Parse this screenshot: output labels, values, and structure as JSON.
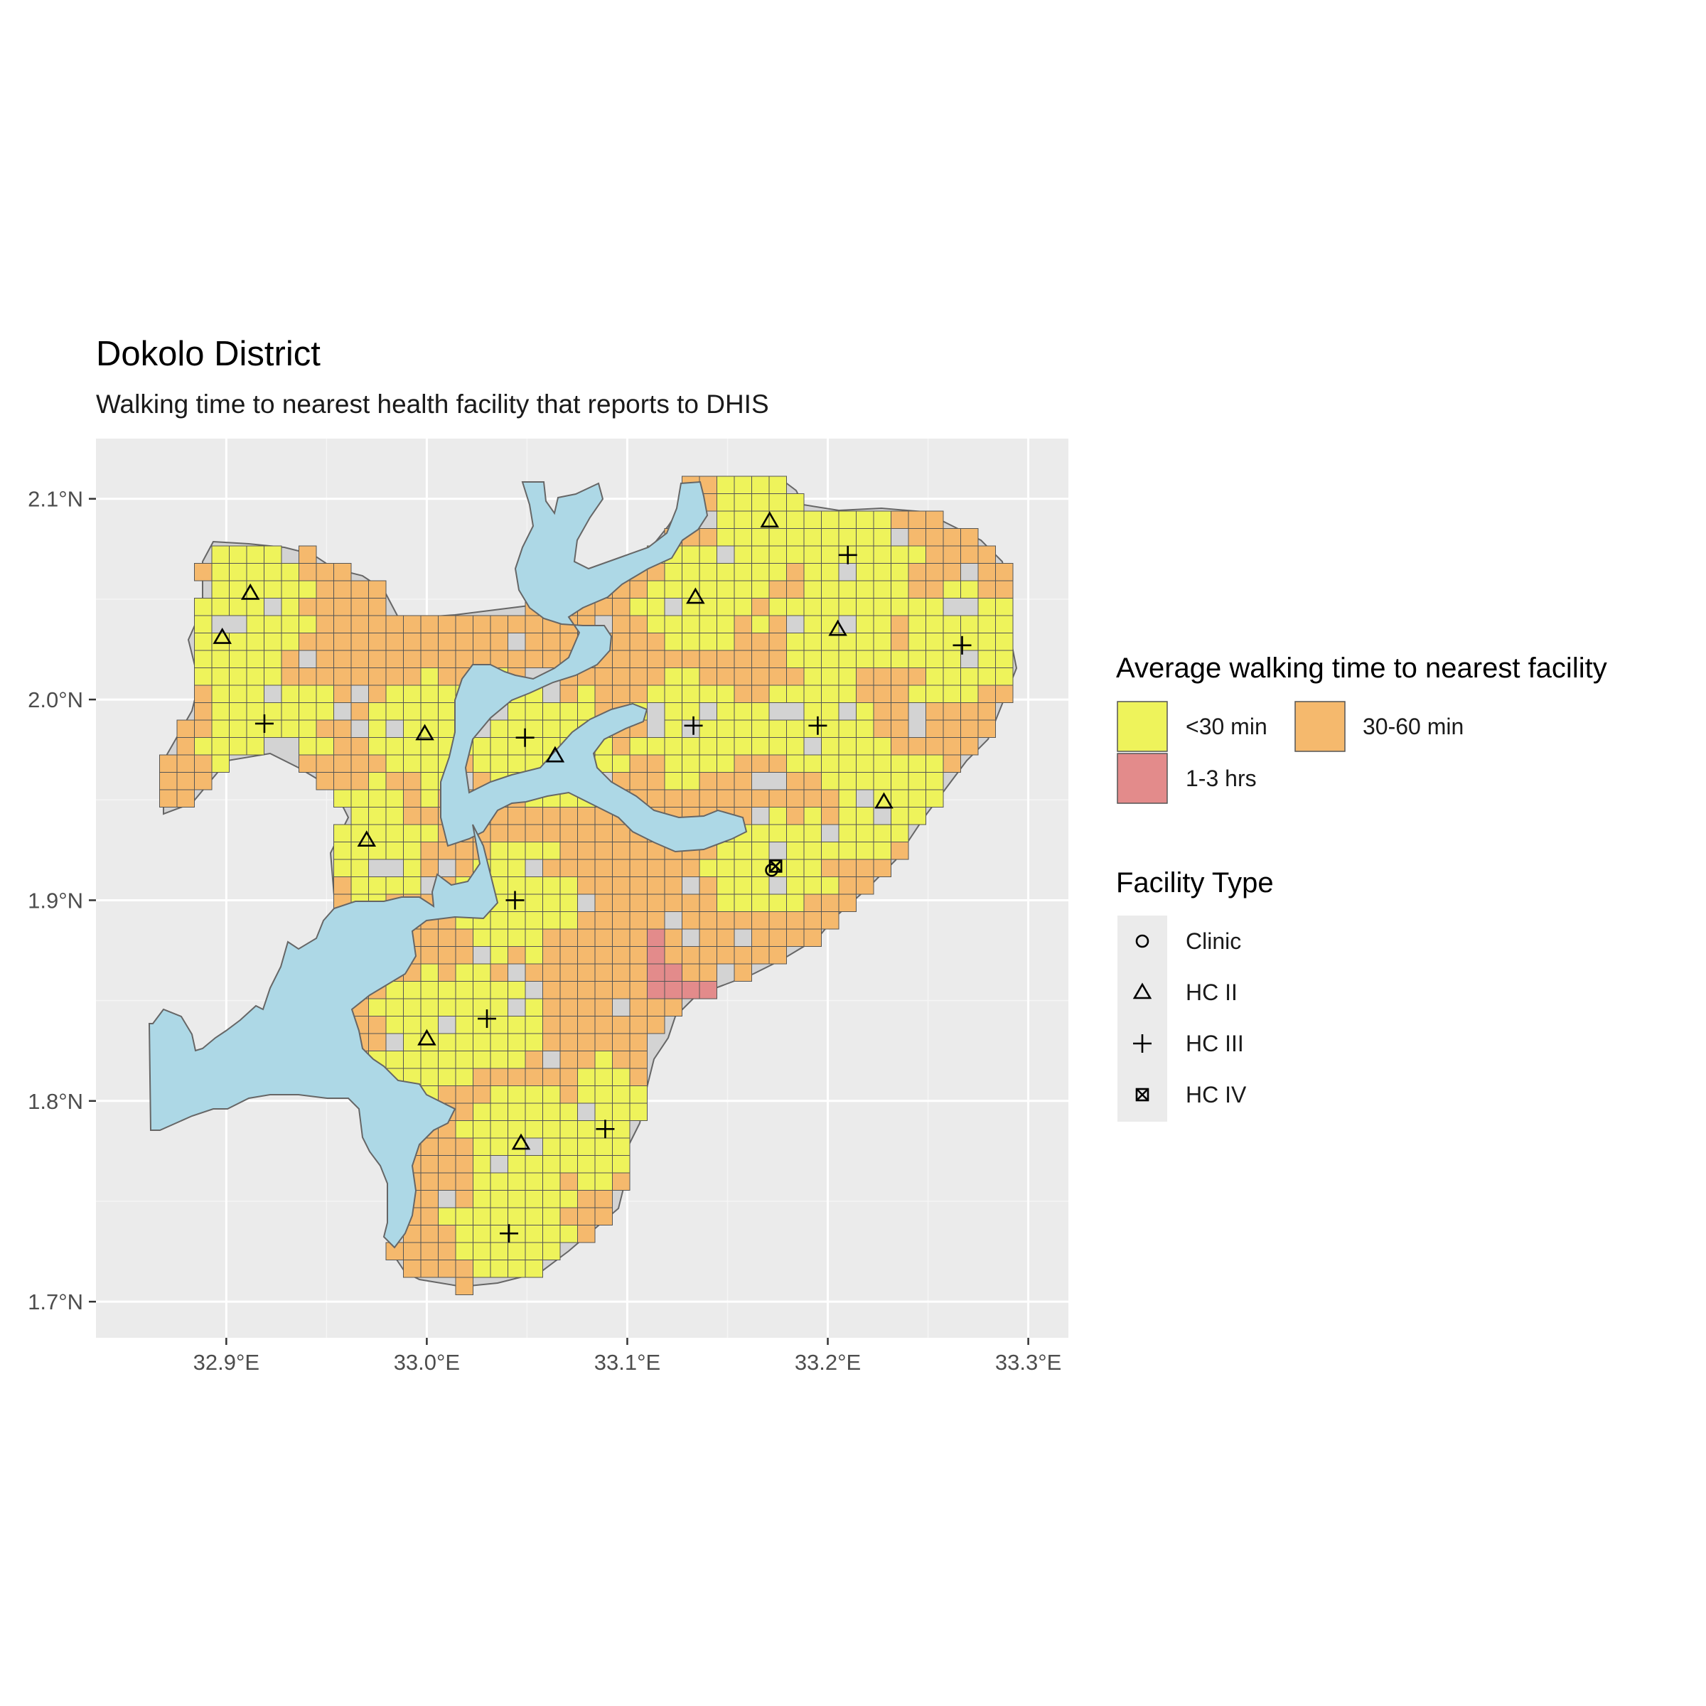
{
  "title": "Dokolo District",
  "subtitle": "Walking time to nearest health facility that reports to DHIS",
  "map": {
    "x_ticks": [
      {
        "value": 32.9,
        "label": "32.9°E"
      },
      {
        "value": 33.0,
        "label": "33.0°E"
      },
      {
        "value": 33.1,
        "label": "33.1°E"
      },
      {
        "value": 33.2,
        "label": "33.2°E"
      },
      {
        "value": 33.3,
        "label": "33.3°E"
      }
    ],
    "y_ticks": [
      {
        "value": 1.7,
        "label": "1.7°N"
      },
      {
        "value": 1.8,
        "label": "1.8°N"
      },
      {
        "value": 1.9,
        "label": "1.9°N"
      },
      {
        "value": 2.0,
        "label": "2.0°N"
      },
      {
        "value": 2.1,
        "label": "2.1°N"
      }
    ],
    "xlim": [
      32.835,
      33.32
    ],
    "ylim": [
      1.682,
      2.13
    ],
    "colors": {
      "panel": "#ebebeb",
      "district": "#d3d3d3",
      "water": "#add8e6",
      "lt30": "#eef35b",
      "30to60": "#f5b96d",
      "1to3": "#e38b8b",
      "cell_border": "#555555"
    },
    "facilities": [
      {
        "type": "HC II",
        "lon": 32.912,
        "lat": 2.053
      },
      {
        "type": "HC II",
        "lon": 32.898,
        "lat": 2.031
      },
      {
        "type": "HC III",
        "lon": 32.919,
        "lat": 1.988
      },
      {
        "type": "HC II",
        "lon": 32.999,
        "lat": 1.983
      },
      {
        "type": "HC II",
        "lon": 32.97,
        "lat": 1.93
      },
      {
        "type": "HC III",
        "lon": 33.049,
        "lat": 1.981
      },
      {
        "type": "HC II",
        "lon": 33.064,
        "lat": 1.972
      },
      {
        "type": "HC II",
        "lon": 33.134,
        "lat": 2.051
      },
      {
        "type": "HC II",
        "lon": 33.171,
        "lat": 2.089
      },
      {
        "type": "HC III",
        "lon": 33.21,
        "lat": 2.072
      },
      {
        "type": "HC II",
        "lon": 33.205,
        "lat": 2.035
      },
      {
        "type": "HC III",
        "lon": 33.267,
        "lat": 2.027
      },
      {
        "type": "HC III",
        "lon": 33.133,
        "lat": 1.987
      },
      {
        "type": "HC III",
        "lon": 33.195,
        "lat": 1.987
      },
      {
        "type": "HC II",
        "lon": 33.228,
        "lat": 1.949
      },
      {
        "type": "Clinic",
        "lon": 33.172,
        "lat": 1.915
      },
      {
        "type": "HC IV",
        "lon": 33.174,
        "lat": 1.917
      },
      {
        "type": "HC III",
        "lon": 33.044,
        "lat": 1.9
      },
      {
        "type": "HC III",
        "lon": 33.03,
        "lat": 1.841
      },
      {
        "type": "HC II",
        "lon": 33.0,
        "lat": 1.831
      },
      {
        "type": "HC III",
        "lon": 33.089,
        "lat": 1.786
      },
      {
        "type": "HC II",
        "lon": 33.047,
        "lat": 1.779
      },
      {
        "type": "HC III",
        "lon": 33.041,
        "lat": 1.734
      }
    ]
  },
  "legend": {
    "walk_title": "Average walking time to nearest facility",
    "walk_items": [
      {
        "label": "<30 min",
        "color": "#eef35b"
      },
      {
        "label": "30-60 min",
        "color": "#f5b96d"
      },
      {
        "label": "1-3 hrs",
        "color": "#e38b8b"
      }
    ],
    "facility_title": "Facility Type",
    "facility_items": [
      {
        "label": "Clinic",
        "shape": "circle"
      },
      {
        "label": "HC II",
        "shape": "triangle"
      },
      {
        "label": "HC III",
        "shape": "plus"
      },
      {
        "label": "HC IV",
        "shape": "square-x"
      }
    ]
  }
}
